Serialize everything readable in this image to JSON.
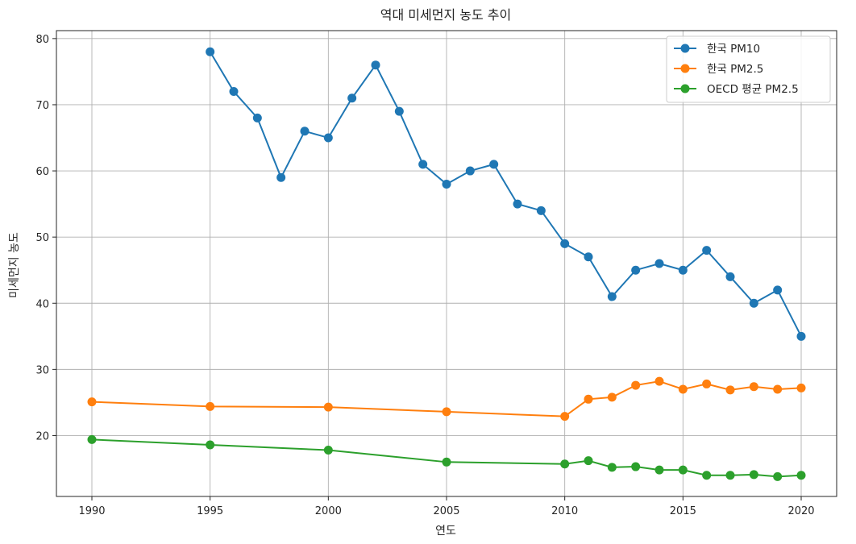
{
  "chart_data": {
    "type": "line",
    "title": "역대 미세먼지 농도 추이",
    "xlabel": "연도",
    "ylabel": "미세먼지 농도",
    "xlim": [
      1988.5,
      2021.5
    ],
    "ylim": [
      10.8,
      81.2
    ],
    "xticks": [
      1990,
      1995,
      2000,
      2005,
      2010,
      2015,
      2020
    ],
    "yticks": [
      20,
      30,
      40,
      50,
      60,
      70,
      80
    ],
    "grid": true,
    "legend_position": "top-right",
    "series": [
      {
        "name": "한국 PM10",
        "color": "#1f77b4",
        "x": [
          1995,
          1996,
          1997,
          1998,
          1999,
          2000,
          2001,
          2002,
          2003,
          2004,
          2005,
          2006,
          2007,
          2008,
          2009,
          2010,
          2011,
          2012,
          2013,
          2014,
          2015,
          2016,
          2017,
          2018,
          2019,
          2020
        ],
        "y": [
          78,
          72,
          68,
          59,
          66,
          65,
          71,
          76,
          69,
          61,
          58,
          60,
          61,
          55,
          54,
          49,
          47,
          41,
          45,
          46,
          45,
          48,
          44,
          40,
          42,
          35
        ]
      },
      {
        "name": "한국 PM2.5",
        "color": "#ff7f0e",
        "x": [
          1990,
          1995,
          2000,
          2005,
          2010,
          2011,
          2012,
          2013,
          2014,
          2015,
          2016,
          2017,
          2018,
          2019,
          2020
        ],
        "y": [
          25.1,
          24.4,
          24.3,
          23.6,
          22.9,
          25.5,
          25.8,
          27.6,
          28.2,
          27.0,
          27.8,
          26.9,
          27.4,
          27.0,
          27.2
        ]
      },
      {
        "name": "OECD 평균 PM2.5",
        "color": "#2ca02c",
        "x": [
          1990,
          1995,
          2000,
          2005,
          2010,
          2011,
          2012,
          2013,
          2014,
          2015,
          2016,
          2017,
          2018,
          2019,
          2020
        ],
        "y": [
          19.4,
          18.6,
          17.8,
          16.0,
          15.7,
          16.2,
          15.2,
          15.3,
          14.8,
          14.8,
          14.0,
          14.0,
          14.1,
          13.8,
          14.0
        ]
      }
    ]
  }
}
